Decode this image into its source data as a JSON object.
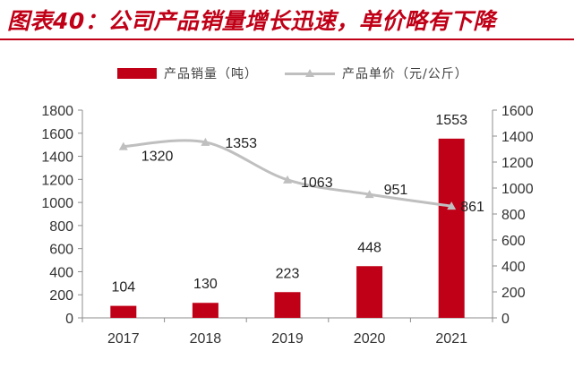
{
  "figure": {
    "title": "图表40：公司产品销量增长迅速，单价略有下降",
    "accent_color": "#c00017"
  },
  "chart_data": {
    "type": "bar",
    "categories": [
      "2017",
      "2018",
      "2019",
      "2020",
      "2021"
    ],
    "series": [
      {
        "name": "产品销量（吨）",
        "type": "bar",
        "axis": "left",
        "values": [
          104,
          130,
          223,
          448,
          1553
        ],
        "color": "#c00017"
      },
      {
        "name": "产品单价（元/公斤）",
        "type": "line",
        "axis": "right",
        "marker": "triangle",
        "values": [
          1320,
          1353,
          1063,
          951,
          861
        ],
        "color": "#bfbfbf"
      }
    ],
    "y_left": {
      "range": [
        0,
        1800
      ],
      "ticks": [
        0,
        200,
        400,
        600,
        800,
        1000,
        1200,
        1400,
        1600,
        1800
      ]
    },
    "y_right": {
      "range": [
        0,
        1600
      ],
      "ticks": [
        0,
        200,
        400,
        600,
        800,
        1000,
        1200,
        1400,
        1600
      ]
    },
    "legend_position": "top-center",
    "grid": false
  }
}
